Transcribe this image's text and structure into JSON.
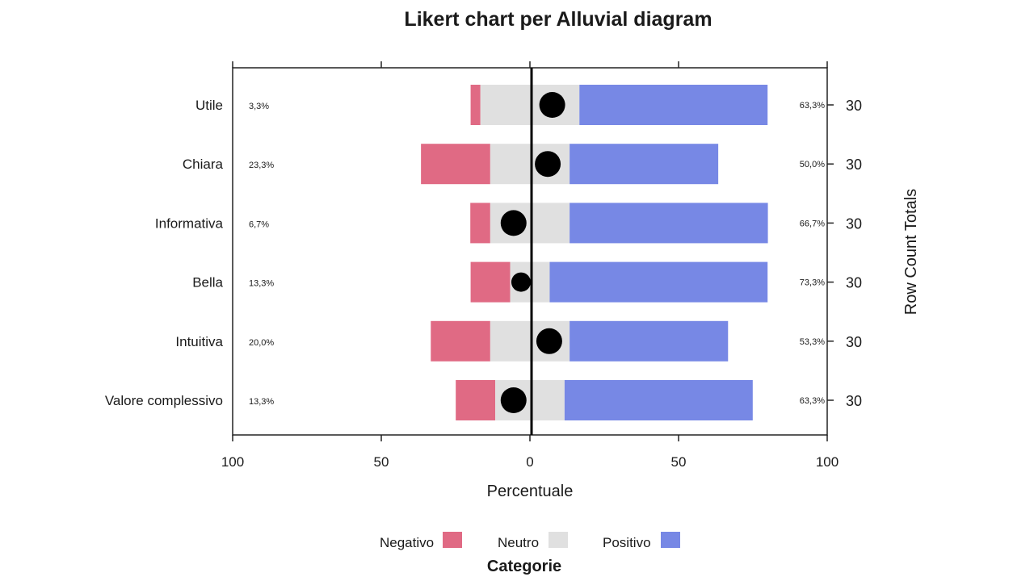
{
  "chart_data": {
    "type": "bar",
    "subtype": "diverging-stacked-likert",
    "title": "Likert chart per Alluvial diagram",
    "xlabel": "Percentuale",
    "ylabel_right": "Row Count Totals",
    "xlim": [
      -100,
      100
    ],
    "xticks": [
      -100,
      -50,
      0,
      50,
      100
    ],
    "xtick_labels": [
      "100",
      "50",
      "0",
      "50",
      "100"
    ],
    "categories": [
      "Utile",
      "Chiara",
      "Informativa",
      "Bella",
      "Intuitiva",
      "Valore complessivo"
    ],
    "series": [
      {
        "name": "Negativo",
        "color": "#e06a84",
        "values": [
          3.3,
          23.3,
          6.7,
          13.3,
          20.0,
          13.3
        ]
      },
      {
        "name": "Neutro",
        "color": "#e0e0e0",
        "values": [
          33.3,
          26.7,
          26.7,
          13.3,
          26.7,
          23.3
        ]
      },
      {
        "name": "Positivo",
        "color": "#7788e5",
        "values": [
          63.3,
          50.0,
          66.7,
          73.3,
          53.3,
          63.3
        ]
      }
    ],
    "negative_labels": [
      "3,3%",
      "23,3%",
      "6,7%",
      "13,3%",
      "20,0%",
      "13,3%"
    ],
    "positive_labels": [
      "63,3%",
      "50,0%",
      "66,7%",
      "73,3%",
      "53,3%",
      "63,3%"
    ],
    "row_totals": [
      "30",
      "30",
      "30",
      "30",
      "30",
      "30"
    ],
    "markers": [
      7.5,
      6,
      -5.5,
      -3,
      6.5,
      -5.5
    ],
    "marker_sizes": [
      1,
      1,
      1,
      0.75,
      1,
      1
    ],
    "legend": {
      "title": "Categorie",
      "position": "bottom",
      "items": [
        {
          "label": "Negativo",
          "color": "#e06a84"
        },
        {
          "label": "Neutro",
          "color": "#e0e0e0"
        },
        {
          "label": "Positivo",
          "color": "#7788e5"
        }
      ]
    },
    "grid": false
  }
}
